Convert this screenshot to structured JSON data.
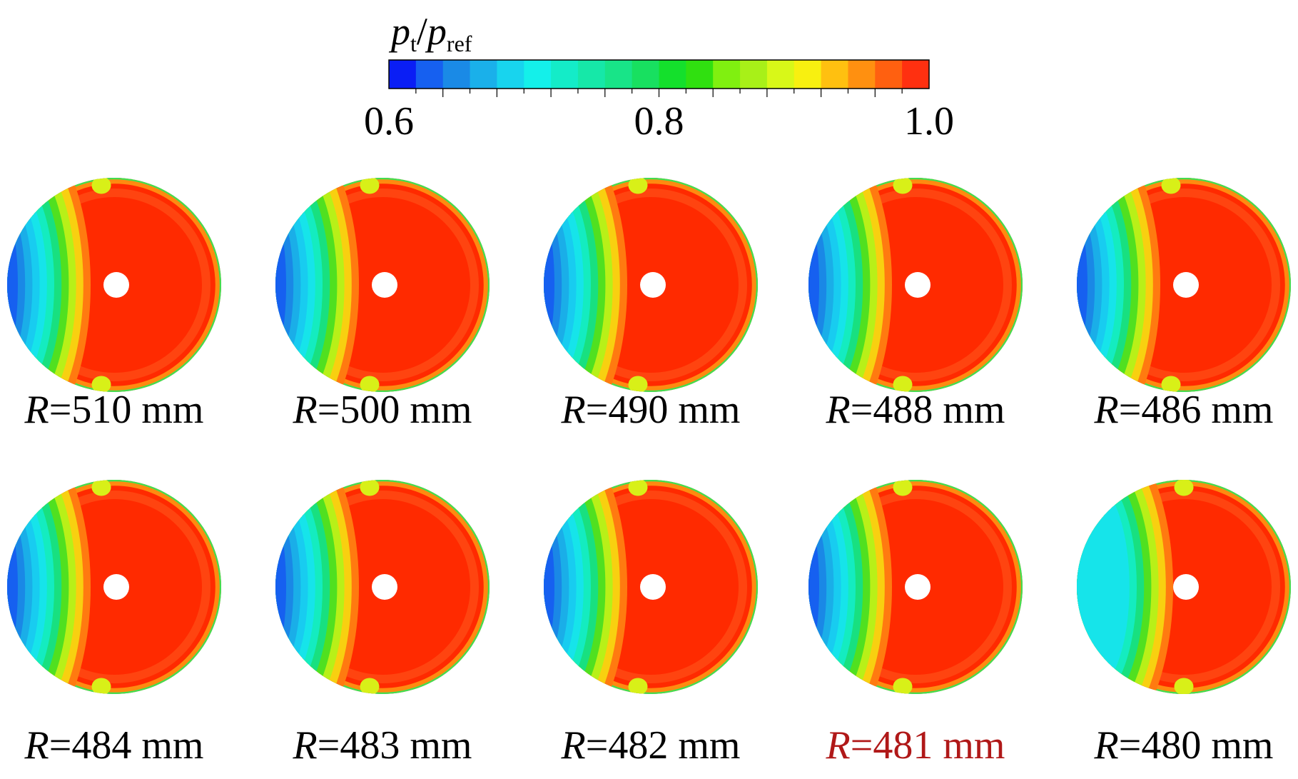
{
  "colorbar": {
    "title": {
      "symbol": "p",
      "sub": "t",
      "separator": "/",
      "symbol2": "p",
      "sub2": "ref"
    },
    "tick_labels": [
      "0.6",
      "0.8",
      "1.0"
    ],
    "colors": [
      "#0a1ef5",
      "#1660f0",
      "#1a8ae6",
      "#1ab0ea",
      "#18d4ee",
      "#14f0ea",
      "#14ecc8",
      "#16e8a8",
      "#18e488",
      "#18e060",
      "#14e02c",
      "#30e010",
      "#80f010",
      "#a8f018",
      "#d8f818",
      "#f8f010",
      "#ffc010",
      "#ff9010",
      "#ff6010",
      "#ff3010"
    ]
  },
  "panels": [
    {
      "variable": "R",
      "text": "=510 mm",
      "color": "#000000"
    },
    {
      "variable": "R",
      "text": "=500 mm",
      "color": "#000000"
    },
    {
      "variable": "R",
      "text": "=490 mm",
      "color": "#000000"
    },
    {
      "variable": "R",
      "text": "=488 mm",
      "color": "#000000"
    },
    {
      "variable": "R",
      "text": "=486 mm",
      "color": "#000000"
    },
    {
      "variable": "R",
      "text": "=484 mm",
      "color": "#000000"
    },
    {
      "variable": "R",
      "text": "=483 mm",
      "color": "#000000"
    },
    {
      "variable": "R",
      "text": "=482 mm",
      "color": "#000000"
    },
    {
      "variable": "R",
      "text": "=481 mm",
      "color": "#b01818"
    },
    {
      "variable": "R",
      "text": "=480 mm",
      "color": "#000000"
    }
  ]
}
